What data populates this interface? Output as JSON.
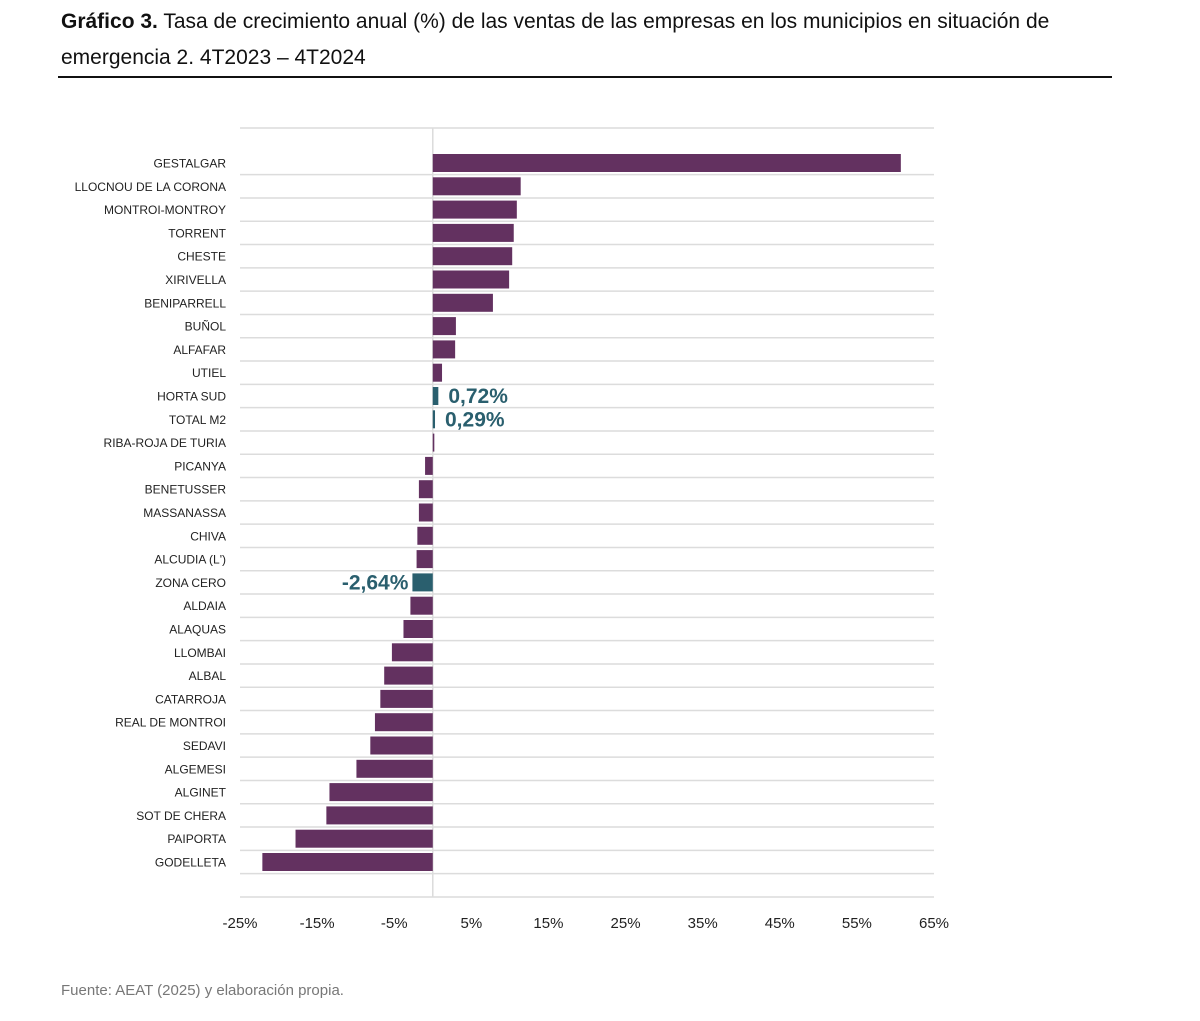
{
  "title_bold": "Gráfico 3.",
  "title_rest": " Tasa de crecimiento anual (%) de las ventas de las empresas en los municipios en situación de emergencia 2. 4T2023 – 4T2024",
  "source": "Fuente: AEAT (2025) y elaboración propia.",
  "colors": {
    "bar": "#633160",
    "highlight": "#2a5f6e",
    "grid": "#dcdcdc"
  },
  "chart_data": {
    "type": "bar",
    "orientation": "horizontal",
    "title": "Tasa de crecimiento anual (%) de las ventas de las empresas en los municipios en situación de emergencia 2. 4T2023 – 4T2024",
    "xlabel": "",
    "ylabel": "",
    "xlim": [
      -25,
      65
    ],
    "xticks": [
      -25,
      -15,
      -5,
      5,
      15,
      25,
      35,
      45,
      55,
      65
    ],
    "xtick_labels": [
      "-25%",
      "-15%",
      "-5%",
      "5%",
      "15%",
      "25%",
      "35%",
      "45%",
      "55%",
      "65%"
    ],
    "grid": "horizontal",
    "categories": [
      "GESTALGAR",
      "LLOCNOU DE LA CORONA",
      "MONTROI-MONTROY",
      "TORRENT",
      "CHESTE",
      "XIRIVELLA",
      "BENIPARRELL",
      "BUÑOL",
      "ALFAFAR",
      "UTIEL",
      "HORTA SUD",
      "TOTAL M2",
      "RIBA-ROJA DE TURIA",
      "PICANYA",
      "BENETUSSER",
      "MASSANASSA",
      "CHIVA",
      "ALCUDIA (L')",
      "ZONA CERO",
      "ALDAIA",
      "ALAQUAS",
      "LLOMBAI",
      "ALBAL",
      "CATARROJA",
      "REAL DE MONTROI",
      "SEDAVI",
      "ALGEMESI",
      "ALGINET",
      "SOT DE CHERA",
      "PAIPORTA",
      "GODELLETA"
    ],
    "values": [
      60.7,
      11.4,
      10.9,
      10.5,
      10.3,
      9.9,
      7.8,
      3.0,
      2.9,
      1.2,
      0.72,
      0.29,
      0.2,
      -1.0,
      -1.8,
      -1.8,
      -2.0,
      -2.1,
      -2.64,
      -2.9,
      -3.8,
      -5.3,
      -6.3,
      -6.8,
      -7.5,
      -8.1,
      -9.9,
      -13.4,
      -13.8,
      -17.8,
      -22.1
    ],
    "highlighted": [
      "HORTA SUD",
      "TOTAL M2",
      "ZONA CERO"
    ],
    "annotations": [
      {
        "category": "HORTA SUD",
        "text": "0,72%"
      },
      {
        "category": "TOTAL M2",
        "text": "0,29%"
      },
      {
        "category": "ZONA CERO",
        "text": "-2,64%"
      }
    ]
  }
}
